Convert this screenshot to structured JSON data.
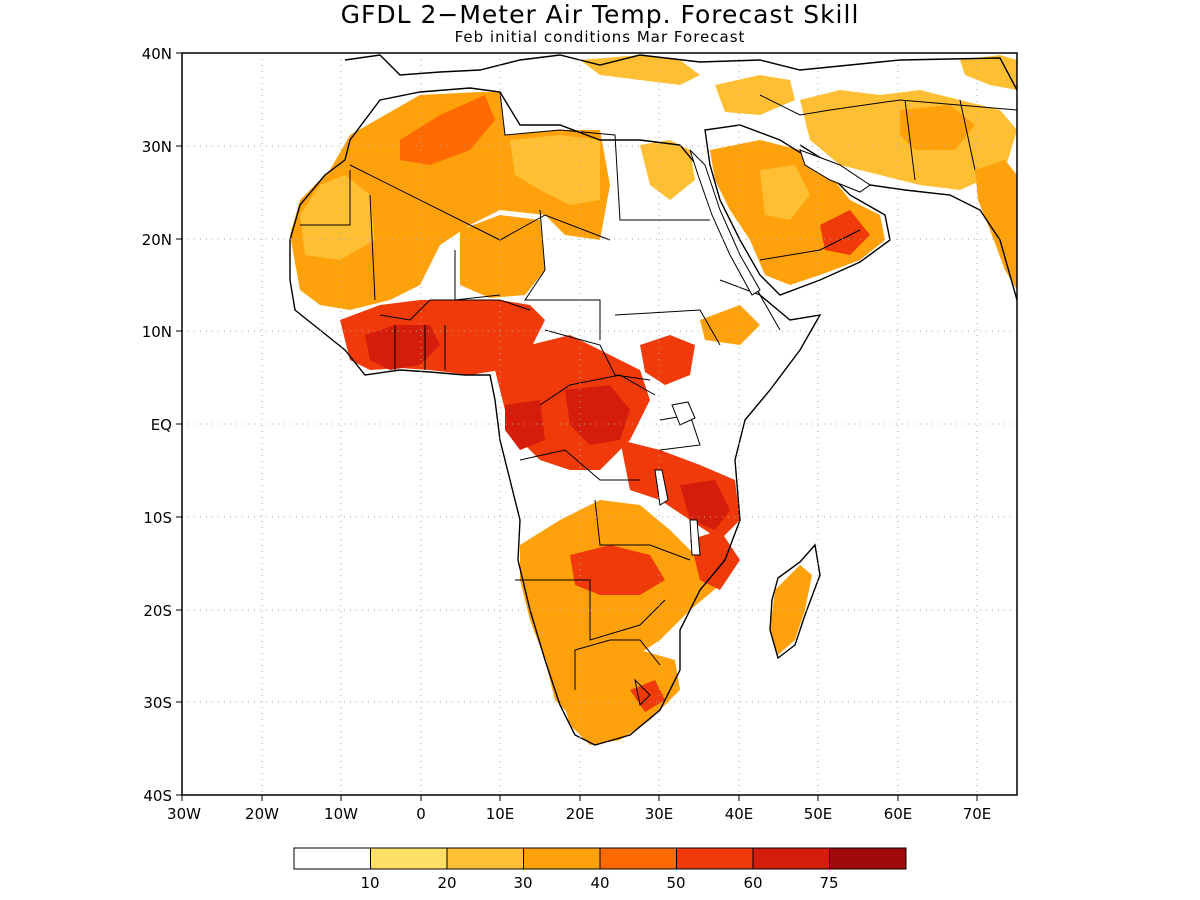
{
  "title": "GFDL 2−Meter Air Temp. Forecast Skill",
  "subtitle": "Feb initial conditions  Mar Forecast",
  "map": {
    "region": "Africa",
    "extent": {
      "lon_min": -30,
      "lon_max": 75,
      "lat_min": -40,
      "lat_max": 40
    },
    "lat_ticks": [
      {
        "value": 40,
        "label": "40N"
      },
      {
        "value": 30,
        "label": "30N"
      },
      {
        "value": 20,
        "label": "20N"
      },
      {
        "value": 10,
        "label": "10N"
      },
      {
        "value": 0,
        "label": "EQ"
      },
      {
        "value": -10,
        "label": "10S"
      },
      {
        "value": -20,
        "label": "20S"
      },
      {
        "value": -30,
        "label": "30S"
      },
      {
        "value": -40,
        "label": "40S"
      }
    ],
    "lon_ticks": [
      {
        "value": -30,
        "label": "30W"
      },
      {
        "value": -20,
        "label": "20W"
      },
      {
        "value": -10,
        "label": "10W"
      },
      {
        "value": 0,
        "label": "0"
      },
      {
        "value": 10,
        "label": "10E"
      },
      {
        "value": 20,
        "label": "20E"
      },
      {
        "value": 30,
        "label": "30E"
      },
      {
        "value": 40,
        "label": "40E"
      },
      {
        "value": 50,
        "label": "50E"
      },
      {
        "value": 60,
        "label": "60E"
      },
      {
        "value": 70,
        "label": "70E"
      }
    ],
    "grid": "dotted"
  },
  "legend": {
    "bins": [
      {
        "color": "#ffffff",
        "label": ""
      },
      {
        "color": "#ffe066",
        "label": "10"
      },
      {
        "color": "#ffbf33",
        "label": "20"
      },
      {
        "color": "#ffa10a",
        "label": "30"
      },
      {
        "color": "#ff6a00",
        "label": "40"
      },
      {
        "color": "#f03a0a",
        "label": "50"
      },
      {
        "color": "#d41d0a",
        "label": "60"
      },
      {
        "color": "#a00a0a",
        "label": "75"
      }
    ]
  }
}
